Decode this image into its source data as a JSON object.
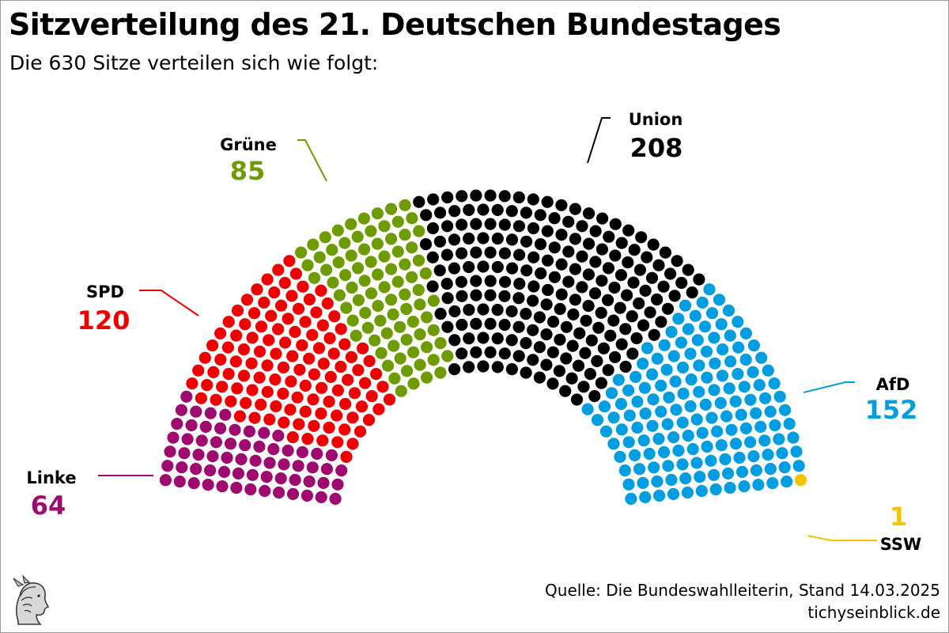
{
  "header": {
    "title": "Sitzverteilung des 21. Deutschen Bundestages",
    "subtitle": "Die 630 Sitze verteilen sich wie folgt:"
  },
  "chart_data": {
    "type": "parliament",
    "title": "Sitzverteilung des 21. Deutschen Bundestages",
    "subtitle": "Die 630 Sitze verteilen sich wie folgt:",
    "total_seats": 630,
    "series": [
      {
        "name": "Linke",
        "seats": 64,
        "color": "#9e0a6e"
      },
      {
        "name": "SPD",
        "seats": 120,
        "color": "#ee0000"
      },
      {
        "name": "Grüne",
        "seats": 85,
        "color": "#6e9b00"
      },
      {
        "name": "Union",
        "seats": 208,
        "color": "#000000"
      },
      {
        "name": "AfD",
        "seats": 152,
        "color": "#009ee0"
      },
      {
        "name": "SSW",
        "seats": 1,
        "color": "#f5c400"
      }
    ]
  },
  "footer": {
    "source": "Quelle: Die Bundeswahlleiterin, Stand 14.03.2025",
    "website": "tichyseinblick.de"
  },
  "logo": {
    "icon": "hermes-head-icon"
  }
}
